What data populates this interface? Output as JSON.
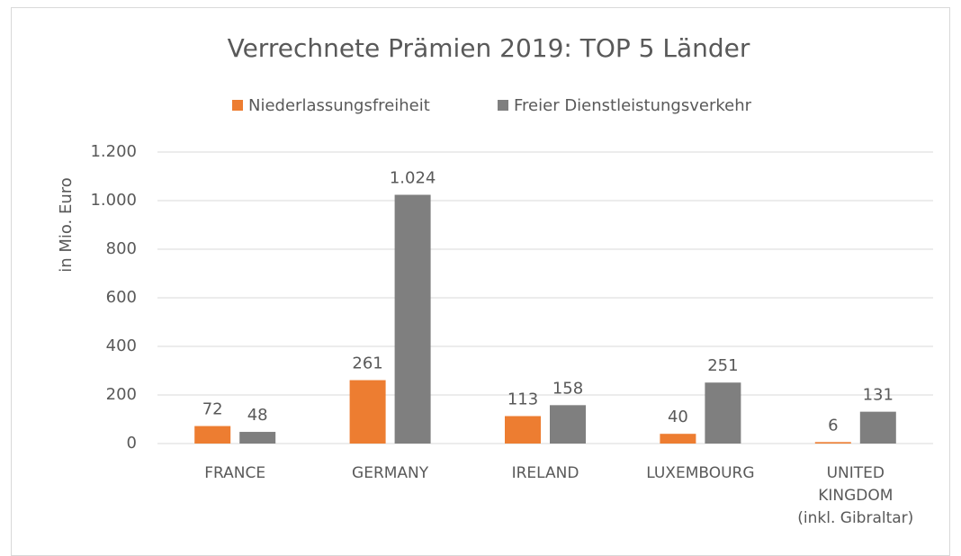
{
  "chart_data": {
    "type": "bar",
    "title": "Verrechnete Prämien 2019: TOP 5 Länder",
    "ylabel": "in Mio. Euro",
    "categories": [
      "FRANCE",
      "GERMANY",
      "IRELAND",
      "LUXEMBOURG",
      "UNITED KINGDOM (inkl. Gibraltar)"
    ],
    "series": [
      {
        "name": "Niederlassungsfreiheit",
        "color": "#ed7d31",
        "values": [
          72,
          261,
          113,
          40,
          6
        ],
        "value_labels": [
          "72",
          "261",
          "113",
          "40",
          "6"
        ]
      },
      {
        "name": "Freier Dienstleistungsverkehr",
        "color": "#7f7f7f",
        "values": [
          48,
          1024,
          158,
          251,
          131
        ],
        "value_labels": [
          "48",
          "1.024",
          "158",
          "251",
          "131"
        ]
      }
    ],
    "ylim": [
      0,
      1200
    ],
    "yticks": [
      0,
      200,
      400,
      600,
      800,
      {
        "value": 1000,
        "label": "1.000"
      },
      {
        "value": 1200,
        "label": "1.200"
      }
    ],
    "grid": true,
    "legend": "top"
  }
}
